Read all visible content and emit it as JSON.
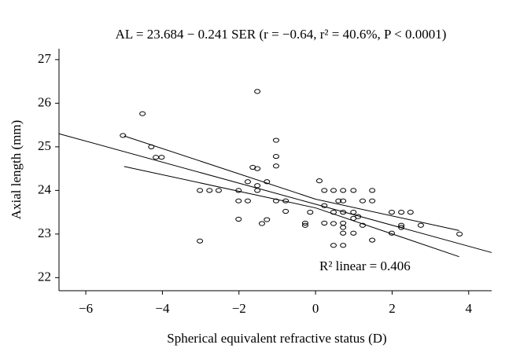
{
  "chart_data": {
    "type": "scatter",
    "title": "AL = 23.684 − 0.241 SER (r = −0.64, r² = 40.6%, P < 0.0001)",
    "x_label": "Spherical equivalent refractive status (D)",
    "y_label": "Axial length (mm)",
    "annotation": "R² linear = 0.406",
    "color": "#000000",
    "xlim": [
      -6.7,
      4.6
    ],
    "ylim": [
      21.7,
      27.25
    ],
    "xticks": [
      {
        "value": -6,
        "label": "−6"
      },
      {
        "value": -4,
        "label": "−4"
      },
      {
        "value": -2,
        "label": "−2"
      },
      {
        "value": 0,
        "label": "0"
      },
      {
        "value": 2,
        "label": "2"
      },
      {
        "value": 4,
        "label": "4"
      }
    ],
    "yticks": [
      22,
      23,
      24,
      25,
      26,
      27
    ],
    "x": [
      -5.03,
      -4.52,
      -4.29,
      -4.17,
      -4.02,
      -3.02,
      -3.02,
      -2.77,
      -2.53,
      -2.01,
      -2.01,
      -2.01,
      -1.77,
      -1.77,
      -1.64,
      -1.52,
      -1.52,
      -1.52,
      -1.52,
      -1.4,
      -1.27,
      -1.27,
      -1.03,
      -1.03,
      -1.03,
      -1.03,
      -0.78,
      -0.78,
      -0.27,
      -0.27,
      -0.14,
      0.1,
      0.23,
      0.23,
      0.23,
      0.47,
      0.47,
      0.47,
      0.47,
      0.6,
      0.72,
      0.72,
      0.72,
      0.72,
      0.72,
      0.72,
      0.72,
      0.99,
      0.99,
      0.99,
      0.99,
      1.11,
      1.23,
      1.23,
      1.48,
      1.48,
      1.48,
      1.99,
      1.99,
      2.24,
      2.24,
      2.24,
      2.48,
      2.75,
      3.76
    ],
    "values": [
      25.26,
      25.76,
      25.0,
      24.76,
      24.76,
      24.0,
      22.84,
      24.0,
      24.0,
      24.0,
      23.76,
      23.34,
      23.76,
      24.2,
      24.53,
      26.27,
      24.5,
      24.11,
      24.0,
      23.24,
      23.33,
      24.2,
      25.15,
      24.78,
      24.56,
      23.76,
      23.76,
      23.52,
      23.25,
      23.2,
      23.5,
      24.22,
      24.0,
      23.65,
      23.25,
      24.0,
      23.5,
      23.24,
      22.74,
      23.76,
      24.0,
      23.76,
      23.5,
      23.25,
      23.15,
      23.02,
      22.74,
      24.0,
      23.5,
      23.36,
      23.02,
      23.4,
      23.76,
      23.2,
      24.0,
      23.76,
      22.86,
      23.5,
      23.02,
      23.5,
      23.2,
      23.15,
      23.5,
      23.2,
      23.0
    ],
    "fit_lines": [
      {
        "x": [
          -6.7,
          4.6
        ],
        "values": [
          25.3,
          22.575
        ]
      },
      {
        "x": [
          -5,
          0,
          3.75
        ],
        "values": [
          25.25,
          23.8,
          23.08
        ]
      },
      {
        "x": [
          -5,
          0,
          3.75
        ],
        "values": [
          24.55,
          23.6,
          22.48
        ]
      }
    ]
  }
}
